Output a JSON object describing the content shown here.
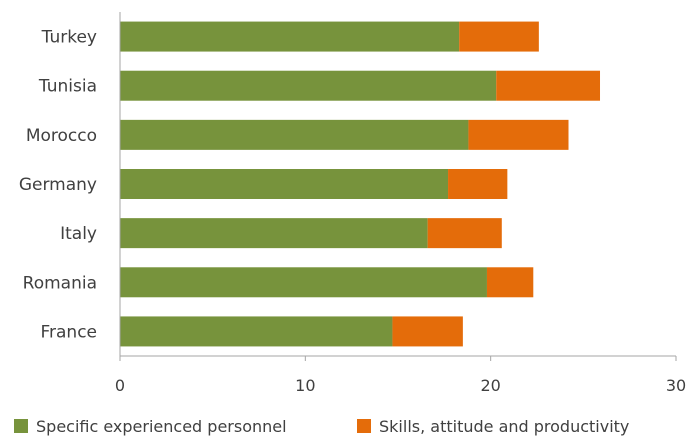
{
  "chart_data": {
    "type": "bar",
    "orientation": "horizontal",
    "stacked": true,
    "categories": [
      "Turkey",
      "Tunisia",
      "Morocco",
      "Germany",
      "Italy",
      "Romania",
      "France"
    ],
    "series": [
      {
        "name": "Specific experienced personnel",
        "color": "#77933c",
        "values": [
          18.3,
          20.3,
          18.8,
          17.7,
          16.6,
          19.8,
          14.7
        ]
      },
      {
        "name": "Skills, attitude and productivity",
        "color": "#e46c0a",
        "values": [
          4.3,
          5.6,
          5.4,
          3.2,
          4.0,
          2.5,
          3.8
        ]
      }
    ],
    "xlim": [
      0,
      30
    ],
    "xticks": [
      "0",
      "10",
      "20",
      "30"
    ],
    "grid": false,
    "legend": "bottom"
  }
}
